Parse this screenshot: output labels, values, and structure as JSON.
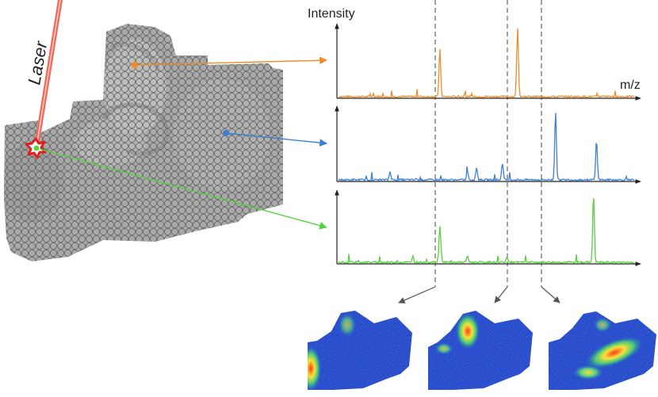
{
  "labels": {
    "laser": "Laser",
    "intensity": "Intensity",
    "mz": "m/z"
  },
  "colors": {
    "orange": "#f28c28",
    "blue": "#3d7fd6",
    "green": "#55d23c",
    "laser": "#f06a5a",
    "tissue": "#a9a9a9",
    "spot_outline": "#5a5a5a",
    "axis": "#222222",
    "dashed": "#555555"
  },
  "spectra": [
    {
      "name": "orange",
      "peaks": [
        {
          "at": 0.339,
          "h": 0.7
        },
        {
          "at": 0.595,
          "h": 1.0
        }
      ]
    },
    {
      "name": "blue",
      "peaks": [
        {
          "at": 0.175,
          "h": 0.12
        },
        {
          "at": 0.43,
          "h": 0.12
        },
        {
          "at": 0.46,
          "h": 0.18
        },
        {
          "at": 0.545,
          "h": 0.25
        },
        {
          "at": 0.72,
          "h": 1.0
        },
        {
          "at": 0.855,
          "h": 0.58
        }
      ]
    },
    {
      "name": "green",
      "peaks": [
        {
          "at": 0.25,
          "h": 0.09
        },
        {
          "at": 0.339,
          "h": 0.55
        },
        {
          "at": 0.43,
          "h": 0.1
        },
        {
          "at": 0.56,
          "h": 0.08
        },
        {
          "at": 0.845,
          "h": 1.0
        }
      ]
    }
  ],
  "ion_images": [
    {
      "name": "ion-image-1",
      "hotspot": "left-edge"
    },
    {
      "name": "ion-image-2",
      "hotspot": "left-notch"
    },
    {
      "name": "ion-image-3",
      "hotspot": "center-band"
    }
  ]
}
